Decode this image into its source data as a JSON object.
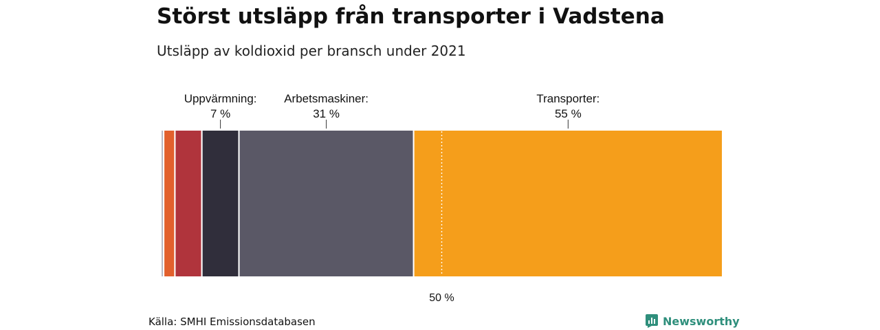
{
  "header": {
    "title": "Störst utsläpp från transporter i Vadstena",
    "subtitle": "Utsläpp av koldioxid per bransch under 2021"
  },
  "footer": {
    "source": "Källa: SMHI Emissionsdatabasen",
    "brand": "Newsworthy"
  },
  "colors": {
    "brand": "#2f8f7c",
    "separator": "#ffffff",
    "reference_line": "#ffffff"
  },
  "chart_data": {
    "type": "bar",
    "orientation": "horizontal-stacked-100",
    "title": "Störst utsläpp från transporter i Vadstena",
    "subtitle": "Utsläpp av koldioxid per bransch under 2021",
    "unit": "%",
    "segments": [
      {
        "value": 0.5,
        "color": "#b8b8c4",
        "label_name": "",
        "label_value": ""
      },
      {
        "value": 2.0,
        "color": "#e2602d",
        "label_name": "",
        "label_value": ""
      },
      {
        "value": 4.8,
        "color": "#b0343c",
        "label_name": "",
        "label_value": ""
      },
      {
        "value": 6.6,
        "color": "#302e3b",
        "label_name": "Uppvärmning:",
        "label_value": "7 %"
      },
      {
        "value": 31.1,
        "color": "#5a5866",
        "label_name": "Arbetsmaskiner:",
        "label_value": "31 %"
      },
      {
        "value": 55.0,
        "color": "#f59e1b",
        "label_name": "Transporter:",
        "label_value": "55 %"
      }
    ],
    "reference": {
      "value": 50,
      "label": "50 %"
    }
  }
}
